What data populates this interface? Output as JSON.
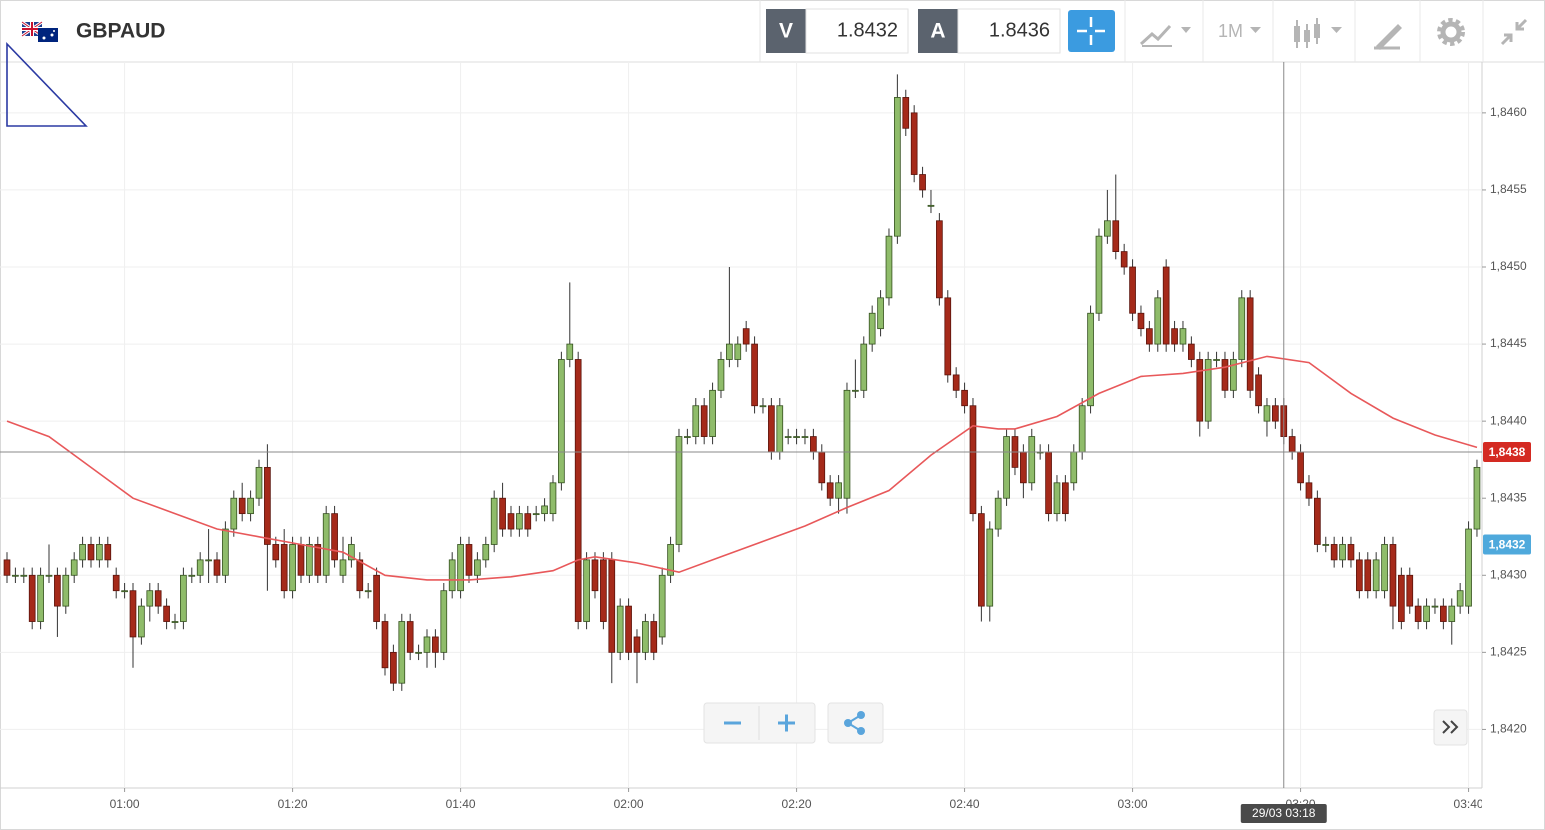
{
  "toolbar": {
    "symbol": "GBPAUD",
    "bid_label": "V",
    "bid": 1.8432,
    "ask_label": "A",
    "ask": 1.8436,
    "timeframe": "1M"
  },
  "chart_data": {
    "type": "candlestick",
    "up_color": "#8fbc6a",
    "down_color": "#a52a1a",
    "xlim": [
      -0.833,
      175.6
    ],
    "ylim": [
      1.84162,
      1.84633
    ],
    "xticks": [
      {
        "value": 14,
        "label": "01:00"
      },
      {
        "value": 34,
        "label": "01:20"
      },
      {
        "value": 54,
        "label": "01:40"
      },
      {
        "value": 74,
        "label": "02:00"
      },
      {
        "value": 94,
        "label": "02:20"
      },
      {
        "value": 114,
        "label": "02:40"
      },
      {
        "value": 134,
        "label": "03:00"
      },
      {
        "value": 154,
        "label": "03:20"
      },
      {
        "value": 174,
        "label": "03:40"
      }
    ],
    "yticks": [
      {
        "value": 1.842,
        "label": "1,8420"
      },
      {
        "value": 1.8425,
        "label": "1,8425"
      },
      {
        "value": 1.843,
        "label": "1,8430"
      },
      {
        "value": 1.8435,
        "label": "1,8435"
      },
      {
        "value": 1.844,
        "label": "1,8440"
      },
      {
        "value": 1.8445,
        "label": "1,8445"
      },
      {
        "value": 1.845,
        "label": "1,8450"
      },
      {
        "value": 1.8455,
        "label": "1,8455"
      },
      {
        "value": 1.846,
        "label": "1,8460"
      }
    ],
    "grid": true,
    "price_markers": [
      {
        "value": 1.8438,
        "label": "1,8438",
        "color": "#d42a22",
        "line": true
      },
      {
        "value": 1.8432,
        "label": "1,8432",
        "color": "#4fa9dc",
        "line": false
      }
    ],
    "crosshair": {
      "x": 152,
      "label": "29/03 03:18"
    },
    "ma": {
      "color": "#e8585a",
      "x": [
        0,
        5,
        10,
        15,
        20,
        25,
        30,
        35,
        40,
        45,
        50,
        55,
        60,
        65,
        68,
        70,
        75,
        80,
        85,
        90,
        95,
        100,
        105,
        110,
        115,
        118,
        120,
        125,
        130,
        135,
        140,
        145,
        150,
        155,
        160,
        165,
        170,
        175
      ],
      "values": [
        1.844,
        1.8439,
        1.8437,
        1.8435,
        1.8434,
        1.8433,
        1.84325,
        1.8432,
        1.84315,
        1.843,
        1.84297,
        1.84297,
        1.84299,
        1.84303,
        1.8431,
        1.84312,
        1.84308,
        1.84302,
        1.84312,
        1.84322,
        1.84332,
        1.84344,
        1.84355,
        1.84378,
        1.84397,
        1.84395,
        1.84395,
        1.84403,
        1.84418,
        1.84429,
        1.84431,
        1.84435,
        1.84442,
        1.84438,
        1.84418,
        1.84402,
        1.84391,
        1.84383
      ]
    },
    "candles": [
      [
        1.8431,
        1.84315,
        1.84295,
        1.843
      ],
      [
        1.843,
        1.84305,
        1.84295,
        1.843
      ],
      [
        1.843,
        1.84305,
        1.84295,
        1.843
      ],
      [
        1.843,
        1.84305,
        1.84265,
        1.8427
      ],
      [
        1.8427,
        1.84305,
        1.84265,
        1.843
      ],
      [
        1.843,
        1.8432,
        1.84295,
        1.843
      ],
      [
        1.843,
        1.84305,
        1.8426,
        1.8428
      ],
      [
        1.8428,
        1.84305,
        1.84275,
        1.843
      ],
      [
        1.843,
        1.84315,
        1.84295,
        1.8431
      ],
      [
        1.8431,
        1.84325,
        1.84305,
        1.8432
      ],
      [
        1.8432,
        1.84325,
        1.84305,
        1.8431
      ],
      [
        1.8431,
        1.84325,
        1.84305,
        1.8432
      ],
      [
        1.8432,
        1.84325,
        1.84305,
        1.8431
      ],
      [
        1.843,
        1.84305,
        1.84285,
        1.8429
      ],
      [
        1.8429,
        1.84295,
        1.84285,
        1.8429
      ],
      [
        1.8429,
        1.84295,
        1.8424,
        1.8426
      ],
      [
        1.8426,
        1.84285,
        1.84255,
        1.8428
      ],
      [
        1.8428,
        1.84295,
        1.8427,
        1.8429
      ],
      [
        1.8429,
        1.84295,
        1.84275,
        1.8428
      ],
      [
        1.8428,
        1.84285,
        1.84265,
        1.8427
      ],
      [
        1.8427,
        1.84275,
        1.84265,
        1.8427
      ],
      [
        1.8427,
        1.84305,
        1.84265,
        1.843
      ],
      [
        1.843,
        1.84305,
        1.84295,
        1.843
      ],
      [
        1.843,
        1.84315,
        1.84295,
        1.8431
      ],
      [
        1.8431,
        1.8433,
        1.84295,
        1.8431
      ],
      [
        1.8431,
        1.84315,
        1.84295,
        1.843
      ],
      [
        1.843,
        1.84335,
        1.84295,
        1.8433
      ],
      [
        1.8433,
        1.84355,
        1.84325,
        1.8435
      ],
      [
        1.8435,
        1.8436,
        1.84335,
        1.8434
      ],
      [
        1.8434,
        1.84355,
        1.84335,
        1.8435
      ],
      [
        1.8435,
        1.84375,
        1.84345,
        1.8437
      ],
      [
        1.8437,
        1.84385,
        1.8429,
        1.8432
      ],
      [
        1.8432,
        1.84325,
        1.84305,
        1.8431
      ],
      [
        1.8432,
        1.8433,
        1.84285,
        1.8429
      ],
      [
        1.8429,
        1.84325,
        1.84285,
        1.8432
      ],
      [
        1.8432,
        1.84325,
        1.84295,
        1.843
      ],
      [
        1.843,
        1.84325,
        1.84295,
        1.8432
      ],
      [
        1.8432,
        1.84325,
        1.84295,
        1.843
      ],
      [
        1.843,
        1.84345,
        1.84295,
        1.8434
      ],
      [
        1.8434,
        1.84345,
        1.84305,
        1.8431
      ],
      [
        1.843,
        1.84325,
        1.84295,
        1.8431
      ],
      [
        1.8431,
        1.84325,
        1.84305,
        1.8432
      ],
      [
        1.8431,
        1.84315,
        1.84285,
        1.8429
      ],
      [
        1.8429,
        1.84295,
        1.84285,
        1.8429
      ],
      [
        1.843,
        1.84305,
        1.84265,
        1.8427
      ],
      [
        1.8427,
        1.84275,
        1.84235,
        1.8424
      ],
      [
        1.8425,
        1.84255,
        1.84225,
        1.8423
      ],
      [
        1.8423,
        1.84275,
        1.84225,
        1.8427
      ],
      [
        1.8427,
        1.84275,
        1.84245,
        1.8425
      ],
      [
        1.8425,
        1.84255,
        1.84245,
        1.8425
      ],
      [
        1.8425,
        1.84265,
        1.8424,
        1.8426
      ],
      [
        1.8426,
        1.84265,
        1.8424,
        1.8425
      ],
      [
        1.8425,
        1.84295,
        1.84245,
        1.8429
      ],
      [
        1.8429,
        1.84315,
        1.84285,
        1.8431
      ],
      [
        1.8429,
        1.84325,
        1.84285,
        1.8432
      ],
      [
        1.8432,
        1.84325,
        1.84295,
        1.843
      ],
      [
        1.843,
        1.84315,
        1.84295,
        1.8431
      ],
      [
        1.8431,
        1.84325,
        1.84305,
        1.8432
      ],
      [
        1.8432,
        1.84355,
        1.84315,
        1.8435
      ],
      [
        1.8435,
        1.8436,
        1.84325,
        1.8433
      ],
      [
        1.8434,
        1.84345,
        1.84325,
        1.8433
      ],
      [
        1.8433,
        1.84345,
        1.84325,
        1.8434
      ],
      [
        1.8434,
        1.84345,
        1.84325,
        1.8433
      ],
      [
        1.8434,
        1.84345,
        1.84335,
        1.8434
      ],
      [
        1.8434,
        1.8435,
        1.84335,
        1.84345
      ],
      [
        1.8434,
        1.84365,
        1.84335,
        1.8436
      ],
      [
        1.8436,
        1.84445,
        1.84355,
        1.8444
      ],
      [
        1.8444,
        1.8449,
        1.84435,
        1.8445
      ],
      [
        1.8444,
        1.84445,
        1.84265,
        1.8427
      ],
      [
        1.8427,
        1.84315,
        1.84265,
        1.8431
      ],
      [
        1.8431,
        1.84315,
        1.84285,
        1.8429
      ],
      [
        1.8431,
        1.84315,
        1.84265,
        1.8427
      ],
      [
        1.8431,
        1.84315,
        1.8423,
        1.8425
      ],
      [
        1.8425,
        1.84285,
        1.84245,
        1.8428
      ],
      [
        1.8428,
        1.84285,
        1.84245,
        1.8425
      ],
      [
        1.8426,
        1.84265,
        1.8423,
        1.8425
      ],
      [
        1.8425,
        1.84275,
        1.84245,
        1.8427
      ],
      [
        1.8427,
        1.84275,
        1.84245,
        1.8425
      ],
      [
        1.8426,
        1.84305,
        1.84255,
        1.843
      ],
      [
        1.843,
        1.84325,
        1.84295,
        1.8432
      ],
      [
        1.8432,
        1.84395,
        1.84315,
        1.8439
      ],
      [
        1.8439,
        1.84395,
        1.84385,
        1.8439
      ],
      [
        1.8439,
        1.84415,
        1.84385,
        1.8441
      ],
      [
        1.8441,
        1.84415,
        1.84385,
        1.8439
      ],
      [
        1.8439,
        1.84425,
        1.84385,
        1.8442
      ],
      [
        1.8442,
        1.84445,
        1.84415,
        1.8444
      ],
      [
        1.8444,
        1.845,
        1.84435,
        1.8445
      ],
      [
        1.8444,
        1.84455,
        1.84435,
        1.8445
      ],
      [
        1.8446,
        1.84465,
        1.84445,
        1.8445
      ],
      [
        1.8445,
        1.84455,
        1.84405,
        1.8441
      ],
      [
        1.8441,
        1.84415,
        1.84405,
        1.8441
      ],
      [
        1.8441,
        1.84415,
        1.84375,
        1.8438
      ],
      [
        1.8438,
        1.84415,
        1.84375,
        1.8441
      ],
      [
        1.8439,
        1.84395,
        1.84385,
        1.8439
      ],
      [
        1.8439,
        1.84395,
        1.84385,
        1.8439
      ],
      [
        1.8439,
        1.84395,
        1.84385,
        1.8439
      ],
      [
        1.8439,
        1.84395,
        1.84375,
        1.8438
      ],
      [
        1.8438,
        1.84385,
        1.84355,
        1.8436
      ],
      [
        1.8436,
        1.84365,
        1.84345,
        1.8435
      ],
      [
        1.8435,
        1.84365,
        1.8434,
        1.8436
      ],
      [
        1.8435,
        1.84425,
        1.8434,
        1.8442
      ],
      [
        1.8442,
        1.8444,
        1.84415,
        1.8442
      ],
      [
        1.8442,
        1.84455,
        1.84415,
        1.8445
      ],
      [
        1.8445,
        1.84475,
        1.84445,
        1.8447
      ],
      [
        1.8446,
        1.84485,
        1.84455,
        1.8448
      ],
      [
        1.8448,
        1.84525,
        1.84475,
        1.8452
      ],
      [
        1.8452,
        1.84625,
        1.84515,
        1.8461
      ],
      [
        1.8461,
        1.84615,
        1.84585,
        1.8459
      ],
      [
        1.846,
        1.84605,
        1.84555,
        1.8456
      ],
      [
        1.8456,
        1.84565,
        1.84545,
        1.8455
      ],
      [
        1.8454,
        1.8455,
        1.84535,
        1.8454
      ],
      [
        1.8453,
        1.84535,
        1.84475,
        1.8448
      ],
      [
        1.8448,
        1.84485,
        1.84425,
        1.8443
      ],
      [
        1.8443,
        1.84435,
        1.84415,
        1.8442
      ],
      [
        1.8442,
        1.84425,
        1.84405,
        1.8441
      ],
      [
        1.8441,
        1.84415,
        1.84335,
        1.8434
      ],
      [
        1.8434,
        1.84345,
        1.8427,
        1.8428
      ],
      [
        1.8428,
        1.84335,
        1.8427,
        1.8433
      ],
      [
        1.8433,
        1.84355,
        1.84325,
        1.8435
      ],
      [
        1.8435,
        1.84395,
        1.84345,
        1.8439
      ],
      [
        1.8439,
        1.84395,
        1.84365,
        1.8437
      ],
      [
        1.8438,
        1.84385,
        1.8435,
        1.8436
      ],
      [
        1.8436,
        1.84395,
        1.84355,
        1.8439
      ],
      [
        1.8438,
        1.84385,
        1.84375,
        1.8438
      ],
      [
        1.8438,
        1.84385,
        1.84335,
        1.8434
      ],
      [
        1.8434,
        1.84365,
        1.84335,
        1.8436
      ],
      [
        1.8436,
        1.84365,
        1.84335,
        1.8434
      ],
      [
        1.8436,
        1.84385,
        1.84355,
        1.8438
      ],
      [
        1.8438,
        1.84415,
        1.84375,
        1.8441
      ],
      [
        1.8441,
        1.84475,
        1.84405,
        1.8447
      ],
      [
        1.8447,
        1.84525,
        1.84465,
        1.8452
      ],
      [
        1.8452,
        1.8455,
        1.84515,
        1.8453
      ],
      [
        1.8453,
        1.8456,
        1.84505,
        1.8451
      ],
      [
        1.8451,
        1.84515,
        1.84495,
        1.845
      ],
      [
        1.845,
        1.84505,
        1.84465,
        1.8447
      ],
      [
        1.8447,
        1.84475,
        1.84455,
        1.8446
      ],
      [
        1.8446,
        1.84465,
        1.84445,
        1.8445
      ],
      [
        1.8445,
        1.84485,
        1.84445,
        1.8448
      ],
      [
        1.845,
        1.84505,
        1.84445,
        1.8445
      ],
      [
        1.8446,
        1.84465,
        1.84445,
        1.8445
      ],
      [
        1.8445,
        1.84465,
        1.84445,
        1.8446
      ],
      [
        1.8445,
        1.84455,
        1.84435,
        1.8444
      ],
      [
        1.8444,
        1.84445,
        1.8439,
        1.844
      ],
      [
        1.844,
        1.84445,
        1.84395,
        1.8444
      ],
      [
        1.8444,
        1.84445,
        1.84435,
        1.8444
      ],
      [
        1.8444,
        1.84445,
        1.84415,
        1.8442
      ],
      [
        1.8442,
        1.84445,
        1.84415,
        1.8444
      ],
      [
        1.8444,
        1.84485,
        1.84435,
        1.8448
      ],
      [
        1.8448,
        1.84485,
        1.84415,
        1.8442
      ],
      [
        1.8443,
        1.84435,
        1.84405,
        1.8441
      ],
      [
        1.844,
        1.84415,
        1.8439,
        1.8441
      ],
      [
        1.8441,
        1.84415,
        1.84395,
        1.844
      ],
      [
        1.8441,
        1.84415,
        1.84385,
        1.8439
      ],
      [
        1.8439,
        1.84395,
        1.84375,
        1.8438
      ],
      [
        1.8438,
        1.84385,
        1.84355,
        1.8436
      ],
      [
        1.8436,
        1.84365,
        1.84345,
        1.8435
      ],
      [
        1.8435,
        1.84355,
        1.84315,
        1.8432
      ],
      [
        1.8432,
        1.84325,
        1.84315,
        1.8432
      ],
      [
        1.8432,
        1.84325,
        1.84305,
        1.8431
      ],
      [
        1.8431,
        1.84325,
        1.84305,
        1.8432
      ],
      [
        1.8432,
        1.84325,
        1.84305,
        1.8431
      ],
      [
        1.8431,
        1.84315,
        1.84285,
        1.8429
      ],
      [
        1.8431,
        1.84315,
        1.84285,
        1.8429
      ],
      [
        1.8429,
        1.84315,
        1.84285,
        1.8431
      ],
      [
        1.8429,
        1.84325,
        1.84285,
        1.8432
      ],
      [
        1.8432,
        1.84325,
        1.84265,
        1.8428
      ],
      [
        1.843,
        1.84305,
        1.84265,
        1.8427
      ],
      [
        1.843,
        1.84305,
        1.84275,
        1.8428
      ],
      [
        1.8428,
        1.84285,
        1.84265,
        1.8427
      ],
      [
        1.8427,
        1.84285,
        1.84265,
        1.8428
      ],
      [
        1.8428,
        1.84285,
        1.84275,
        1.8428
      ],
      [
        1.8428,
        1.84285,
        1.84265,
        1.8427
      ],
      [
        1.8427,
        1.84285,
        1.84255,
        1.8428
      ],
      [
        1.8428,
        1.84295,
        1.84275,
        1.8429
      ],
      [
        1.8428,
        1.84335,
        1.84275,
        1.8433
      ],
      [
        1.8433,
        1.84375,
        1.84325,
        1.8437
      ]
    ]
  }
}
